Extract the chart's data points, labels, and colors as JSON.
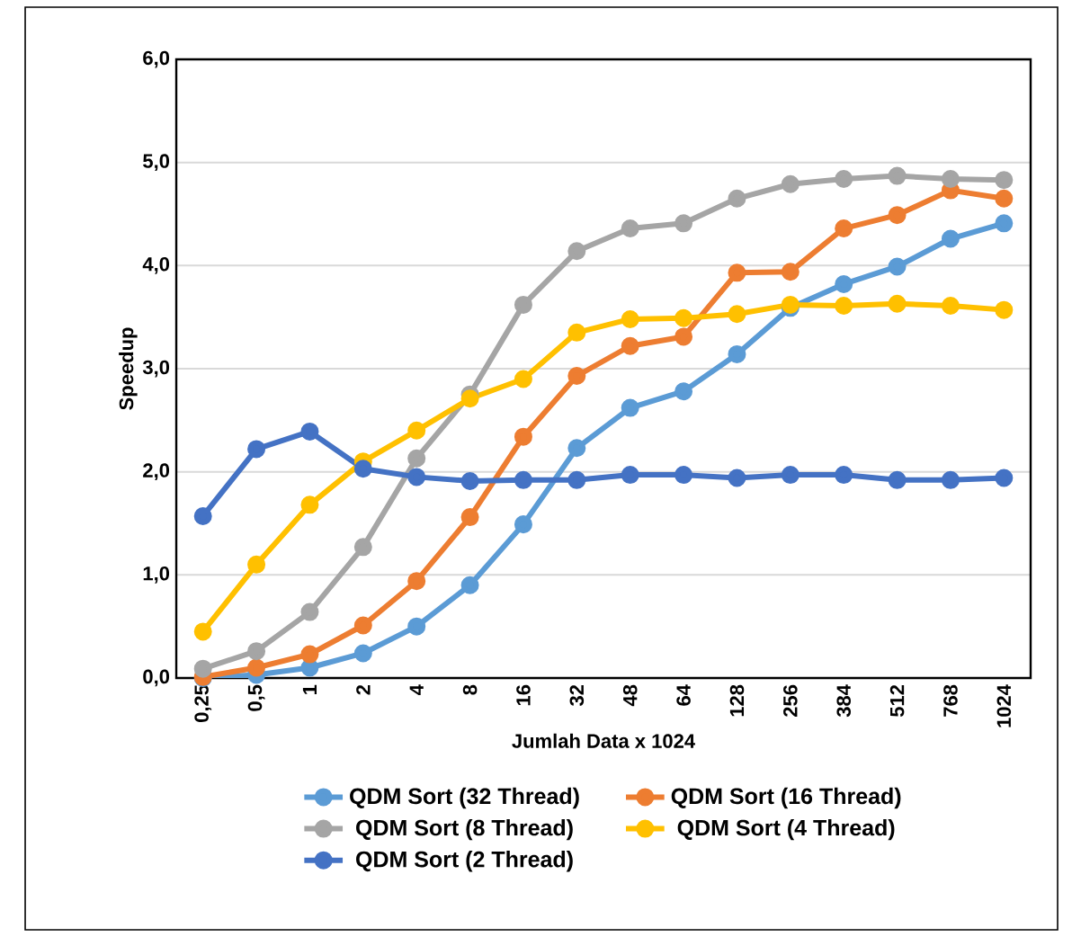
{
  "chart_data": {
    "type": "line",
    "xlabel": "Jumlah Data  x 1024",
    "ylabel": "Speedup",
    "categories": [
      "0,25",
      "0,5",
      "1",
      "2",
      "4",
      "8",
      "16",
      "32",
      "48",
      "64",
      "128",
      "256",
      "384",
      "512",
      "768",
      "1024"
    ],
    "series": [
      {
        "name": "QDM Sort (32 Thread)",
        "color": "#5b9bd5",
        "values": [
          0.0,
          0.03,
          0.1,
          0.24,
          0.5,
          0.9,
          1.49,
          2.23,
          2.62,
          2.78,
          3.14,
          3.59,
          3.82,
          3.99,
          4.26,
          4.41
        ]
      },
      {
        "name": "QDM Sort (16 Thread)",
        "color": "#ed7d31",
        "values": [
          0.01,
          0.1,
          0.23,
          0.51,
          0.94,
          1.56,
          2.34,
          2.93,
          3.22,
          3.31,
          3.93,
          3.94,
          4.36,
          4.49,
          4.73,
          4.65
        ]
      },
      {
        "name": "QDM Sort (8 Thread)",
        "color": "#a5a5a5",
        "values": [
          0.09,
          0.26,
          0.64,
          1.27,
          2.13,
          2.75,
          3.62,
          4.14,
          4.36,
          4.41,
          4.65,
          4.79,
          4.84,
          4.87,
          4.84,
          4.83
        ]
      },
      {
        "name": "QDM Sort (4 Thread)",
        "color": "#ffc000",
        "values": [
          0.45,
          1.1,
          1.68,
          2.1,
          2.4,
          2.71,
          2.9,
          3.35,
          3.48,
          3.49,
          3.53,
          3.62,
          3.61,
          3.63,
          3.61,
          3.57
        ]
      },
      {
        "name": "QDM Sort (2 Thread)",
        "color": "#4472c4",
        "values": [
          1.57,
          2.22,
          2.39,
          2.03,
          1.95,
          1.91,
          1.92,
          1.92,
          1.97,
          1.97,
          1.94,
          1.97,
          1.97,
          1.92,
          1.92,
          1.94
        ]
      }
    ],
    "ylim": [
      0,
      6
    ],
    "yticks": [
      {
        "value": 0,
        "label": "0,0"
      },
      {
        "value": 1,
        "label": "1,0"
      },
      {
        "value": 2,
        "label": "2,0"
      },
      {
        "value": 3,
        "label": "3,0"
      },
      {
        "value": 4,
        "label": "4,0"
      },
      {
        "value": 5,
        "label": "5,0"
      },
      {
        "value": 6,
        "label": "6,0"
      }
    ],
    "grid": "y",
    "legend": "bottom",
    "marker": "circle",
    "line_style": "solid"
  }
}
